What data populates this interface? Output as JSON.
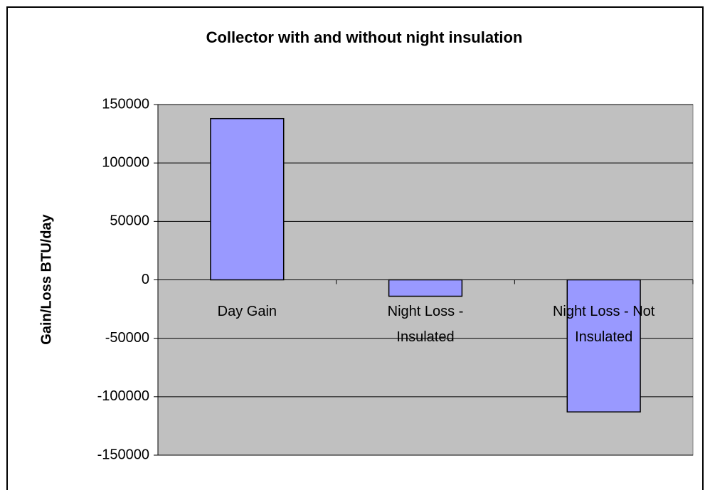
{
  "chart_data": {
    "type": "bar",
    "title": "Collector with and without night insulation",
    "y_label": "Gain/Loss BTU/day",
    "categories": [
      "Day Gain",
      "Night Loss - Insulated",
      "Night Loss - Not Insulated"
    ],
    "values": [
      138000,
      -14000,
      -113000
    ],
    "color": "#9999ff",
    "ylim": [
      -150000,
      150000
    ],
    "yticks": [
      -150000,
      -100000,
      -50000,
      0,
      50000,
      100000,
      150000
    ],
    "grid": true
  }
}
